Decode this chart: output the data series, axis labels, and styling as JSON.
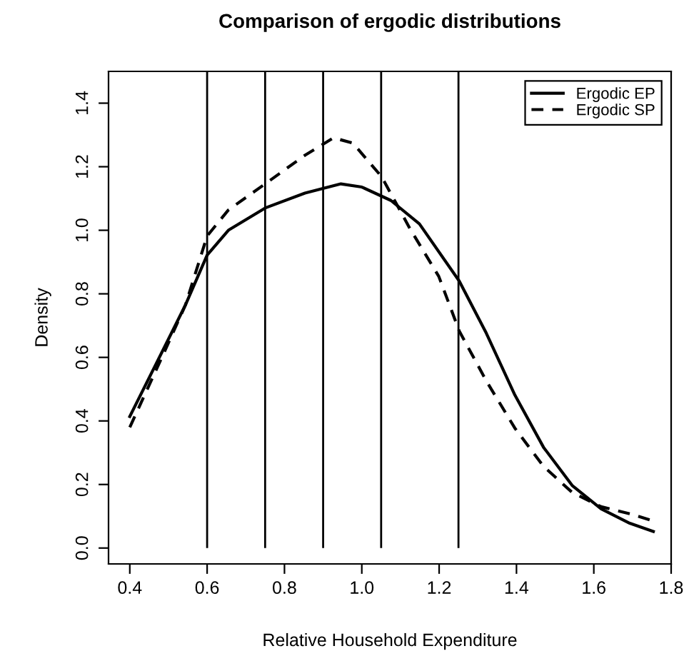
{
  "chart_data": {
    "type": "line",
    "title": "Comparison of ergodic distributions",
    "xlabel": "Relative Household Expenditure",
    "ylabel": "Density",
    "xlim": [
      0.345,
      1.8
    ],
    "ylim": [
      -0.05,
      1.5
    ],
    "xticks": [
      {
        "value": 0.4,
        "label": "0.4"
      },
      {
        "value": 0.6,
        "label": "0.6"
      },
      {
        "value": 0.8,
        "label": "0.8"
      },
      {
        "value": 1.0,
        "label": "1.0"
      },
      {
        "value": 1.2,
        "label": "1.2"
      },
      {
        "value": 1.4,
        "label": "1.4"
      },
      {
        "value": 1.6,
        "label": "1.6"
      },
      {
        "value": 1.8,
        "label": "1.8"
      }
    ],
    "yticks": [
      {
        "value": 0,
        "label": "0.0"
      },
      {
        "value": 0.2,
        "label": "0.2"
      },
      {
        "value": 0.4,
        "label": "0.4"
      },
      {
        "value": 0.6,
        "label": "0.6"
      },
      {
        "value": 0.8,
        "label": "0.8"
      },
      {
        "value": 1.0,
        "label": "1.0"
      },
      {
        "value": 1.2,
        "label": "1.2"
      },
      {
        "value": 1.4,
        "label": "1.4"
      }
    ],
    "legend": "top right",
    "grid": false,
    "series": [
      {
        "name": "Ergodic EP",
        "color": "#000000",
        "line_style": "solid",
        "x": [
          0.4,
          0.483,
          0.544,
          0.6,
          0.655,
          0.75,
          0.853,
          0.946,
          1.0,
          1.075,
          1.149,
          1.252,
          1.322,
          1.396,
          1.47,
          1.544,
          1.619,
          1.693,
          1.754
        ],
        "values": [
          0.414,
          0.616,
          0.765,
          0.922,
          1.0,
          1.07,
          1.117,
          1.146,
          1.136,
          1.094,
          1.02,
          0.84,
          0.676,
          0.481,
          0.317,
          0.197,
          0.123,
          0.078,
          0.052
        ]
      },
      {
        "name": "Ergodic SP",
        "color": "#000000",
        "line_style": "dashed",
        "x": [
          0.4,
          0.483,
          0.544,
          0.6,
          0.655,
          0.75,
          0.853,
          0.927,
          0.977,
          1.051,
          1.125,
          1.199,
          1.252,
          1.322,
          1.396,
          1.47,
          1.544,
          1.619,
          1.693,
          1.754
        ],
        "values": [
          0.38,
          0.6,
          0.765,
          0.982,
          1.064,
          1.146,
          1.236,
          1.291,
          1.274,
          1.169,
          1.004,
          0.855,
          0.683,
          0.526,
          0.377,
          0.257,
          0.175,
          0.13,
          0.108,
          0.085
        ]
      }
    ],
    "ref_lines": [
      {
        "axis": "x",
        "value": 0.6,
        "color": "#000000"
      },
      {
        "axis": "x",
        "value": 0.75,
        "color": "#000000"
      },
      {
        "axis": "x",
        "value": 0.9,
        "color": "#000000"
      },
      {
        "axis": "x",
        "value": 1.05,
        "color": "#000000"
      },
      {
        "axis": "x",
        "value": 1.25,
        "color": "#000000"
      }
    ]
  }
}
